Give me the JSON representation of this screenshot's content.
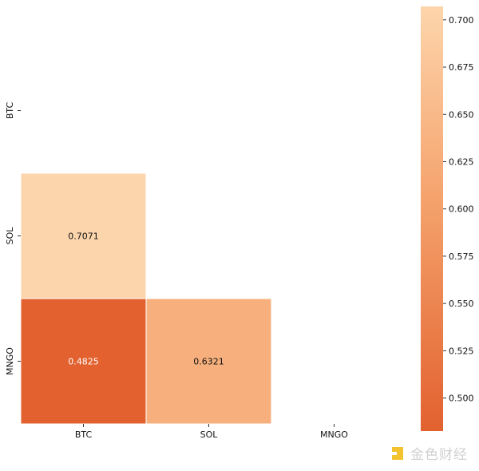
{
  "chart_data": {
    "type": "heatmap",
    "x_categories": [
      "BTC",
      "SOL",
      "MNGO"
    ],
    "y_categories": [
      "BTC",
      "SOL",
      "MNGO"
    ],
    "cells": [
      {
        "row": "SOL",
        "col": "BTC",
        "value": 0.7071,
        "label": "0.7071"
      },
      {
        "row": "MNGO",
        "col": "BTC",
        "value": 0.4825,
        "label": "0.4825"
      },
      {
        "row": "MNGO",
        "col": "SOL",
        "value": 0.6321,
        "label": "0.6321"
      }
    ],
    "mask": "upper-triangle-and-diagonal",
    "colorbar": {
      "min": 0.4825,
      "max": 0.7071,
      "ticks": [
        "0.500",
        "0.525",
        "0.550",
        "0.575",
        "0.600",
        "0.625",
        "0.650",
        "0.675",
        "0.700"
      ],
      "low_color": "#e2612f",
      "high_color": "#fdd5ac",
      "mid_color": "#f5a36d"
    },
    "title": "",
    "xlabel": "",
    "ylabel": ""
  },
  "watermark": {
    "text": "金色财经",
    "logo_color": "#f0b90b"
  }
}
